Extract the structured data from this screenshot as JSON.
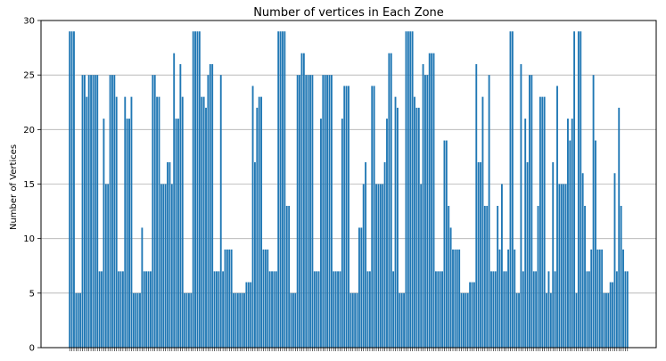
{
  "chart_data": {
    "type": "bar",
    "title": "Number of vertices in Each Zone",
    "xlabel": "",
    "ylabel": "Number of Vertices",
    "ylim": [
      0,
      30
    ],
    "yticks": [
      0,
      5,
      10,
      15,
      20,
      25,
      30
    ],
    "grid": "y",
    "color": "#1f77b4",
    "values": [
      29,
      29,
      29,
      5,
      5,
      5,
      25,
      25,
      23,
      25,
      25,
      25,
      25,
      25,
      7,
      7,
      21,
      15,
      15,
      25,
      25,
      25,
      23,
      7,
      7,
      7,
      23,
      21,
      21,
      23,
      5,
      5,
      5,
      5,
      11,
      7,
      7,
      7,
      7,
      25,
      25,
      23,
      23,
      15,
      15,
      15,
      17,
      17,
      15,
      27,
      21,
      21,
      26,
      23,
      5,
      5,
      5,
      5,
      29,
      29,
      29,
      29,
      23,
      23,
      22,
      25,
      26,
      26,
      7,
      7,
      7,
      25,
      7,
      9,
      9,
      9,
      9,
      5,
      5,
      5,
      5,
      5,
      5,
      6,
      6,
      6,
      24,
      17,
      22,
      23,
      23,
      9,
      9,
      9,
      7,
      7,
      7,
      7,
      29,
      29,
      29,
      29,
      13,
      13,
      5,
      5,
      5,
      25,
      25,
      27,
      27,
      25,
      25,
      25,
      25,
      7,
      7,
      7,
      21,
      25,
      25,
      25,
      25,
      25,
      7,
      7,
      7,
      7,
      21,
      24,
      24,
      24,
      5,
      5,
      5,
      5,
      11,
      11,
      15,
      17,
      7,
      7,
      24,
      24,
      15,
      15,
      15,
      15,
      17,
      21,
      27,
      27,
      7,
      23,
      22,
      5,
      5,
      5,
      29,
      29,
      29,
      29,
      23,
      22,
      22,
      15,
      26,
      25,
      25,
      27,
      27,
      27,
      7,
      7,
      7,
      7,
      19,
      19,
      13,
      11,
      9,
      9,
      9,
      9,
      5,
      5,
      5,
      5,
      6,
      6,
      6,
      26,
      17,
      17,
      23,
      13,
      13,
      25,
      7,
      7,
      7,
      13,
      9,
      15,
      7,
      7,
      9,
      29,
      29,
      9,
      5,
      5,
      26,
      7,
      21,
      17,
      25,
      25,
      7,
      7,
      13,
      23,
      23,
      23,
      5,
      7,
      5,
      17,
      7,
      24,
      15,
      15,
      15,
      15,
      21,
      19,
      21,
      29,
      5,
      29,
      29,
      16,
      13,
      7,
      7,
      9,
      25,
      19,
      9,
      9,
      9,
      5,
      5,
      5,
      6,
      6,
      16,
      7,
      22,
      13,
      9,
      7,
      7
    ]
  }
}
